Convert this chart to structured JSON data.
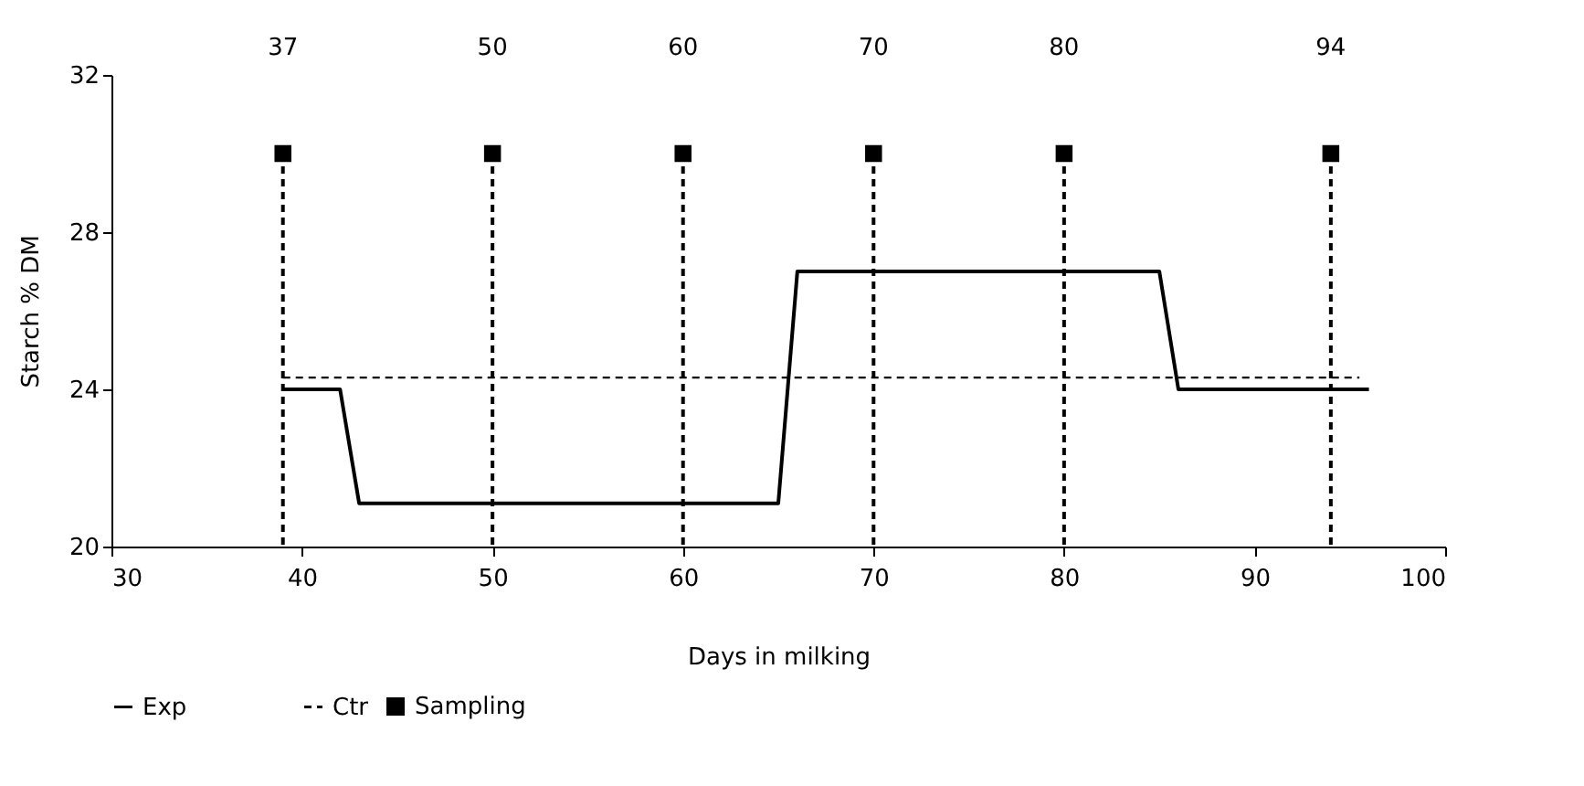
{
  "chart_data": {
    "type": "line",
    "xlabel": "Days in milking",
    "ylabel": "Starch % DM",
    "xlim": [
      30,
      100
    ],
    "xticks": [
      30,
      40,
      50,
      60,
      70,
      80,
      90,
      100
    ],
    "ylim": [
      20,
      32
    ],
    "yticks": [
      20,
      24,
      28,
      32
    ],
    "grid": false,
    "legend": "bottom",
    "series": [
      {
        "name": "Exp",
        "color": "#000000",
        "line_style": "solid",
        "x": [
          39,
          42,
          43,
          65,
          66,
          85,
          86,
          96
        ],
        "values": [
          24,
          24,
          21.1,
          21.1,
          27,
          27,
          24,
          24
        ]
      },
      {
        "name": "Ctr",
        "color": "#000000",
        "line_style": "dashed",
        "x": [
          39,
          95.5
        ],
        "values": [
          24.3,
          24.3
        ]
      },
      {
        "name": "Sampling",
        "type": "lollipop",
        "color": "#000000",
        "marker": "square",
        "line_style": "dashed",
        "x": [
          39,
          50,
          60,
          70,
          80,
          94
        ],
        "values": [
          30,
          30,
          30,
          30,
          30,
          30
        ]
      }
    ],
    "annotations": [
      "37",
      "50",
      "60",
      "70",
      "80",
      "94"
    ]
  }
}
